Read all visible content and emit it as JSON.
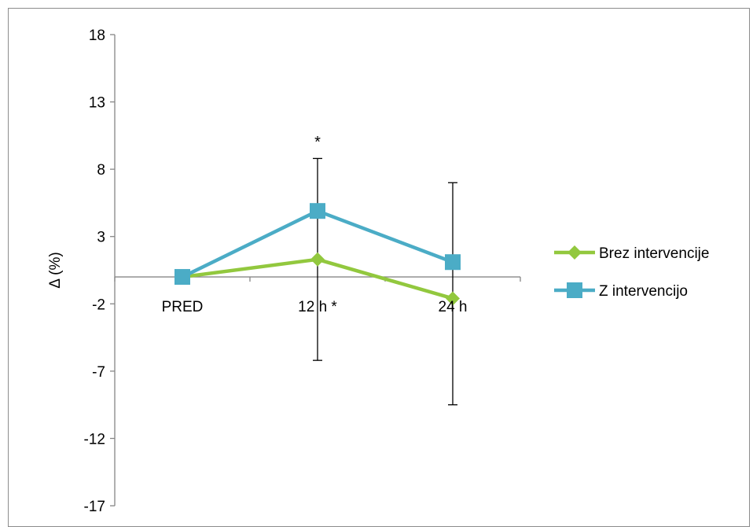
{
  "chart_data": {
    "type": "line",
    "title": "",
    "xlabel": "",
    "ylabel": "Δ (%)",
    "categories": [
      "PRED",
      "12 h *",
      "24 h"
    ],
    "ylim": [
      -17,
      18
    ],
    "yticks": [
      18,
      13,
      8,
      3,
      -2,
      -7,
      -12,
      -17
    ],
    "grid": false,
    "legend_position": "right",
    "annotations": [
      {
        "text": "*",
        "category": "12 h *",
        "y": 10
      }
    ],
    "series": [
      {
        "name": "Brez intervencije",
        "color": "#92c83e",
        "marker": "diamond",
        "values": [
          0,
          1.3,
          -1.6
        ]
      },
      {
        "name": "Z intervencijo",
        "color": "#4bacc6",
        "marker": "square",
        "values": [
          0,
          4.9,
          1.1
        ],
        "error_bars": [
          null,
          {
            "low": -6.2,
            "high": 8.8
          },
          {
            "low": -9.5,
            "high": 7.0
          }
        ]
      }
    ]
  }
}
